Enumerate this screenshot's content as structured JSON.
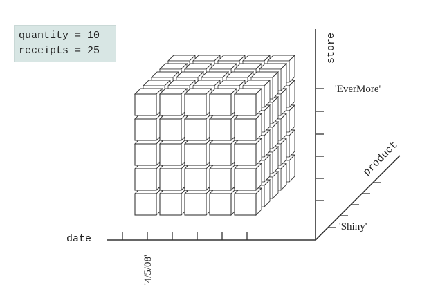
{
  "measures": {
    "quantity": "quantity = 10",
    "receipts": "receipts = 25"
  },
  "dimensions": {
    "store": {
      "name": "store",
      "value": "'EverMore'"
    },
    "product": {
      "name": "product",
      "value": "'Shiny'"
    },
    "date": {
      "name": "date",
      "value": "'4/5/08'"
    }
  },
  "cube": {
    "cells_per_axis": 5
  },
  "colors": {
    "line": "#3a3a3a",
    "face": "#ffffff",
    "legend_bg": "#d8e6e4"
  }
}
